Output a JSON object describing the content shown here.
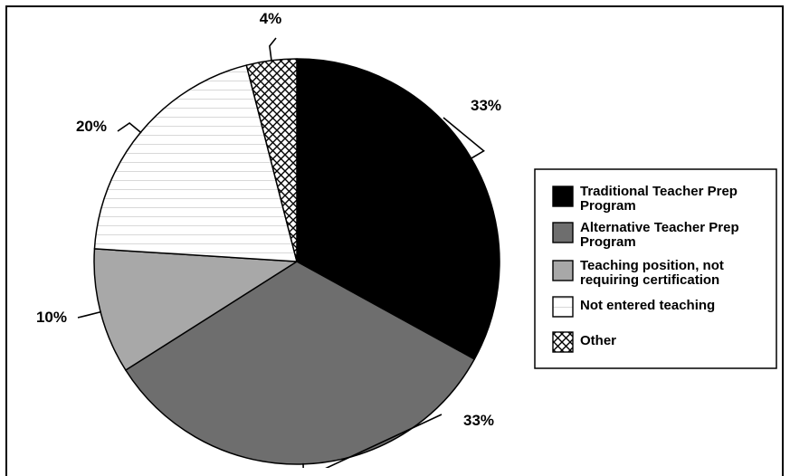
{
  "chart_data": {
    "type": "pie",
    "title": "",
    "start_angle_deg": 0,
    "direction": "clockwise",
    "legend_position": "right",
    "slices": [
      {
        "key": "traditional",
        "label_lines": [
          "Traditional Teacher Prep",
          "Program"
        ],
        "value": 33,
        "value_label": "33%",
        "fill": "#000000",
        "pattern": "solid"
      },
      {
        "key": "alternative",
        "label_lines": [
          "Alternative Teacher Prep",
          "Program"
        ],
        "value": 33,
        "value_label": "33%",
        "fill": "#6e6e6e",
        "pattern": "solid"
      },
      {
        "key": "teaching",
        "label_lines": [
          "Teaching position, not",
          "requiring certification"
        ],
        "value": 10,
        "value_label": "10%",
        "fill": "#a8a8a8",
        "pattern": "solid"
      },
      {
        "key": "not-entered",
        "label_lines": [
          "Not entered teaching"
        ],
        "value": 20,
        "value_label": "20%",
        "fill": "#ffffff",
        "pattern": "lines"
      },
      {
        "key": "other",
        "label_lines": [
          "Other"
        ],
        "value": 4,
        "value_label": "4%",
        "fill": "#ffffff",
        "pattern": "crosshatch"
      }
    ]
  }
}
